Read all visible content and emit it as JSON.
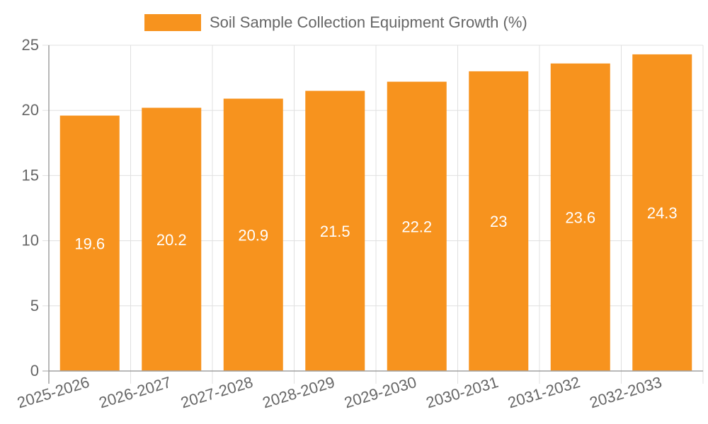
{
  "legend": {
    "label": "Soil Sample Collection Equipment Growth (%)",
    "color": "#f7931e"
  },
  "colors": {
    "bar": "#f7931e",
    "grid": "#e0e0e0",
    "axis": "#a0a0a0",
    "tick_text": "#666666",
    "bar_label": "#ffffff"
  },
  "chart_data": {
    "type": "bar",
    "title": "",
    "categories": [
      "2025-2026",
      "2026-2027",
      "2027-2028",
      "2028-2029",
      "2029-2030",
      "2030-2031",
      "2031-2032",
      "2032-2033"
    ],
    "series": [
      {
        "name": "Soil Sample Collection Equipment Growth (%)",
        "values": [
          19.6,
          20.2,
          20.9,
          21.5,
          22.2,
          23,
          23.6,
          24.3
        ]
      }
    ],
    "data_labels": [
      "19.6",
      "20.2",
      "20.9",
      "21.5",
      "22.2",
      "23",
      "23.6",
      "24.3"
    ],
    "xlabel": "",
    "ylabel": "",
    "ylim": [
      0,
      25
    ],
    "yticks": [
      0,
      5,
      10,
      15,
      20,
      25
    ],
    "grid": true,
    "legend_position": "top"
  }
}
